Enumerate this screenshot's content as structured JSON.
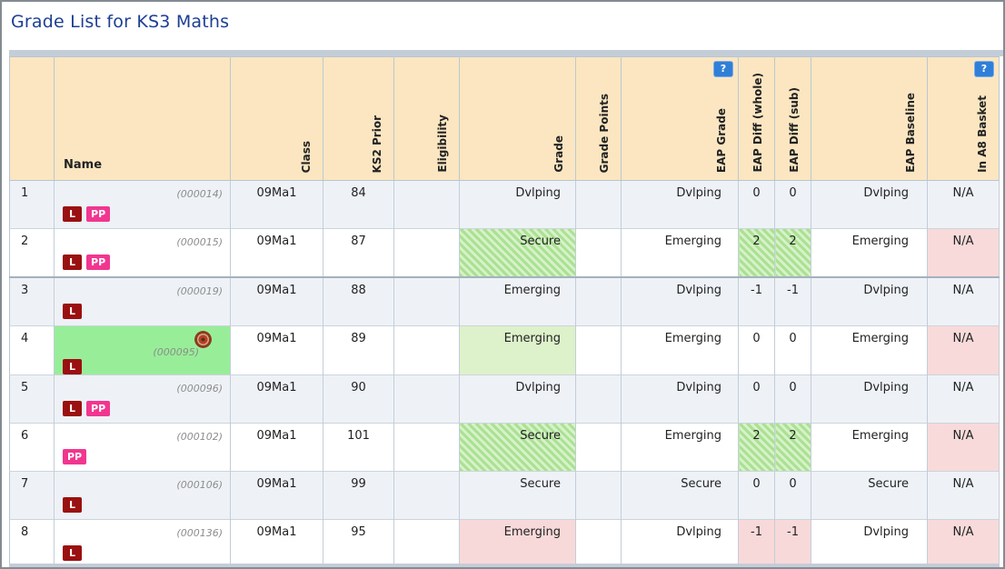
{
  "page": {
    "title": "Grade List for KS3 Maths"
  },
  "colors": {
    "title_text": "#1c3e94",
    "header_bg": "#fbe6c1",
    "zebra_row_bg": "#eef2f7",
    "grade_green_bg": "#ddf1cb",
    "grade_pink_bg": "#f8d9d9",
    "hatch_green_dark": "#abe193",
    "hatch_green_light": "#d7f2ca",
    "a8_pink_bg": "#f8dada",
    "name_highlight_bg": "#98ee98",
    "badge_l_bg": "#9b1010",
    "badge_pp_bg": "#f23690",
    "help_button_bg": "#2f7fd9",
    "scrollbar_bg": "#c3cdd7"
  },
  "table": {
    "help_label": "?",
    "headers": {
      "num": "",
      "name": "Name",
      "class_name": "Class",
      "ks2": "KS2 Prior",
      "eligibility": "Eligibility",
      "grade": "Grade",
      "grade_points": "Grade Points",
      "eap_grade": "EAP Grade",
      "eap_diff_whole": "EAP Diff (whole)",
      "eap_diff_sub": "EAP Diff (sub)",
      "eap_baseline": "EAP Baseline",
      "in_a8": "In A8 Basket"
    },
    "rows": [
      {
        "num": "1",
        "sid": "(000014)",
        "badges": [
          "L",
          "PP"
        ],
        "blur_width": 115,
        "underline": false,
        "highlight": false,
        "class_name": "09Ma1",
        "ks2": "84",
        "eligibility": "",
        "grade": "Dvlping",
        "grade_style": "green",
        "grade_points": "",
        "eap_grade": "Dvlping",
        "eap_diff_whole": "0",
        "eap_diff_sub": "0",
        "diff_style": "none",
        "eap_baseline": "Dvlping",
        "in_a8": "N/A"
      },
      {
        "num": "2",
        "sid": "(000015)",
        "badges": [
          "L",
          "PP"
        ],
        "blur_width": 150,
        "underline": false,
        "highlight": false,
        "class_name": "09Ma1",
        "ks2": "87",
        "eligibility": "",
        "grade": "Secure",
        "grade_style": "hatch",
        "grade_points": "",
        "eap_grade": "Emerging",
        "eap_diff_whole": "2",
        "eap_diff_sub": "2",
        "diff_style": "hatch",
        "eap_baseline": "Emerging",
        "in_a8": "N/A"
      },
      {
        "num": "3",
        "sid": "(000019)",
        "badges": [
          "L"
        ],
        "blur_width": 145,
        "underline": true,
        "highlight": false,
        "class_name": "09Ma1",
        "ks2": "88",
        "eligibility": "",
        "grade": "Emerging",
        "grade_style": "pink",
        "grade_points": "",
        "eap_grade": "Dvlping",
        "eap_diff_whole": "-1",
        "eap_diff_sub": "-1",
        "diff_style": "pink",
        "eap_baseline": "Dvlping",
        "in_a8": "N/A"
      },
      {
        "num": "4",
        "sid": "(000095)",
        "badges": [
          "L"
        ],
        "blur_width": 120,
        "underline": true,
        "highlight": true,
        "class_name": "09Ma1",
        "ks2": "89",
        "eligibility": "",
        "grade": "Emerging",
        "grade_style": "green",
        "grade_points": "",
        "eap_grade": "Emerging",
        "eap_diff_whole": "0",
        "eap_diff_sub": "0",
        "diff_style": "none",
        "eap_baseline": "Emerging",
        "in_a8": "N/A"
      },
      {
        "num": "5",
        "sid": "(000096)",
        "badges": [
          "L",
          "PP"
        ],
        "blur_width": 90,
        "underline": false,
        "highlight": false,
        "class_name": "09Ma1",
        "ks2": "90",
        "eligibility": "",
        "grade": "Dvlping",
        "grade_style": "green",
        "grade_points": "",
        "eap_grade": "Dvlping",
        "eap_diff_whole": "0",
        "eap_diff_sub": "0",
        "diff_style": "none",
        "eap_baseline": "Dvlping",
        "in_a8": "N/A"
      },
      {
        "num": "6",
        "sid": "(000102)",
        "badges": [
          "PP"
        ],
        "blur_width": 105,
        "underline": true,
        "highlight": false,
        "class_name": "09Ma1",
        "ks2": "101",
        "eligibility": "",
        "grade": "Secure",
        "grade_style": "hatch",
        "grade_points": "",
        "eap_grade": "Emerging",
        "eap_diff_whole": "2",
        "eap_diff_sub": "2",
        "diff_style": "hatch",
        "eap_baseline": "Emerging",
        "in_a8": "N/A"
      },
      {
        "num": "7",
        "sid": "(000106)",
        "badges": [
          "L"
        ],
        "blur_width": 100,
        "underline": false,
        "highlight": false,
        "class_name": "09Ma1",
        "ks2": "99",
        "eligibility": "",
        "grade": "Secure",
        "grade_style": "green",
        "grade_points": "",
        "eap_grade": "Secure",
        "eap_diff_whole": "0",
        "eap_diff_sub": "0",
        "diff_style": "none",
        "eap_baseline": "Secure",
        "in_a8": "N/A"
      },
      {
        "num": "8",
        "sid": "(000136)",
        "badges": [
          "L"
        ],
        "blur_width": 105,
        "underline": false,
        "highlight": false,
        "class_name": "09Ma1",
        "ks2": "95",
        "eligibility": "",
        "grade": "Emerging",
        "grade_style": "pink",
        "grade_points": "",
        "eap_grade": "Dvlping",
        "eap_diff_whole": "-1",
        "eap_diff_sub": "-1",
        "diff_style": "pink",
        "eap_baseline": "Dvlping",
        "in_a8": "N/A"
      }
    ]
  }
}
